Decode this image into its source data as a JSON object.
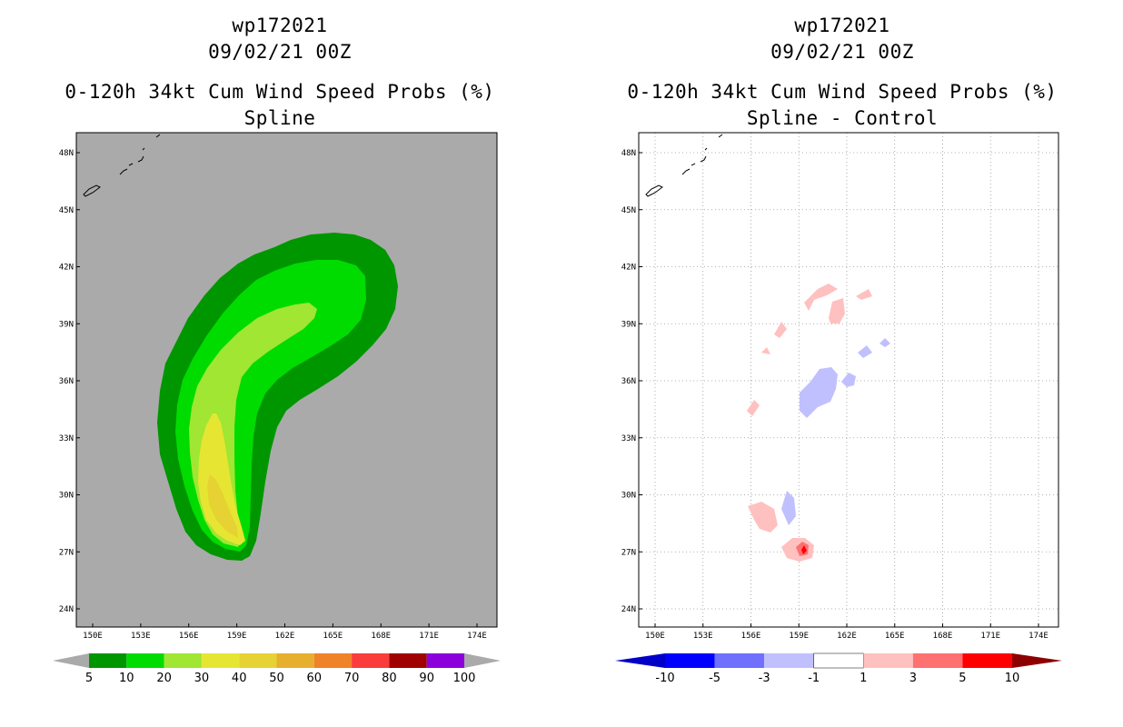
{
  "chart_data": [
    {
      "type": "filled-contour-map",
      "title": [
        "wp172021",
        "09/02/21 00Z",
        "0-120h 34kt Cum Wind Speed Probs (%)",
        "Spline"
      ],
      "x_ticks": [
        "150E",
        "153E",
        "156E",
        "159E",
        "162E",
        "165E",
        "168E",
        "171E",
        "174E"
      ],
      "y_ticks": [
        "24N",
        "27N",
        "30N",
        "33N",
        "36N",
        "39N",
        "42N",
        "45N",
        "48N"
      ],
      "xlim": [
        149,
        175
      ],
      "ylim": [
        23,
        49
      ],
      "background_color": "#aaaaaa",
      "colorbar": {
        "labels": [
          "5",
          "10",
          "20",
          "30",
          "40",
          "50",
          "60",
          "70",
          "80",
          "90",
          "100"
        ],
        "colors": [
          "#009600",
          "#00dc00",
          "#a0e632",
          "#e6e632",
          "#e6d232",
          "#e6af2d",
          "#f08228",
          "#fa3c3c",
          "#a00000",
          "#8c00dc"
        ]
      },
      "levels_shown": [
        "5",
        "10",
        "20",
        "30",
        "40"
      ]
    },
    {
      "type": "filled-contour-map",
      "title": [
        "wp172021",
        "09/02/21 00Z",
        "0-120h 34kt Cum Wind Speed Probs (%)",
        "Spline - Control"
      ],
      "x_ticks": [
        "150E",
        "153E",
        "156E",
        "159E",
        "162E",
        "165E",
        "168E",
        "171E",
        "174E"
      ],
      "y_ticks": [
        "24N",
        "27N",
        "30N",
        "33N",
        "36N",
        "39N",
        "42N",
        "45N",
        "48N"
      ],
      "xlim": [
        149,
        175
      ],
      "ylim": [
        23,
        49
      ],
      "grid": true,
      "colorbar": {
        "labels": [
          "-10",
          "-5",
          "-3",
          "-1",
          "1",
          "3",
          "5",
          "10"
        ],
        "colors": [
          "#0000c8",
          "#0000ff",
          "#7070ff",
          "#c0c0ff",
          "#ffffff",
          "#ffc0c0",
          "#ff7070",
          "#ff0000",
          "#8c0000"
        ]
      },
      "levels_shown": [
        "-1",
        "1",
        "3",
        "5"
      ]
    }
  ]
}
